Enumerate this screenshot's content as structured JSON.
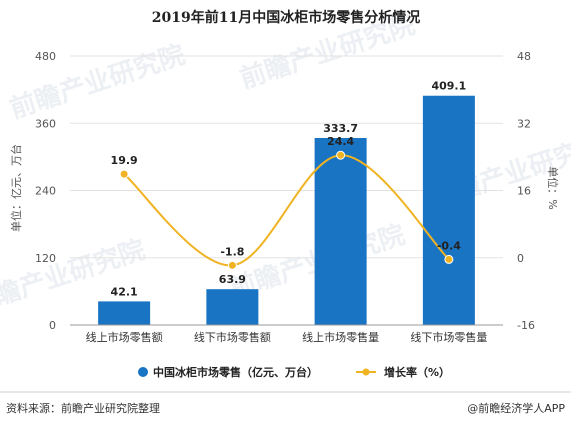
{
  "chart_data": {
    "type": "bar",
    "title": "2019年前11月中国冰柜市场零售分析情况",
    "categories": [
      "线上市场零售额",
      "线下市场零售额",
      "线上市场零售量",
      "线下市场零售量"
    ],
    "series": [
      {
        "name": "中国冰柜市场零售（亿元、万台）",
        "type": "bar",
        "axis": "left",
        "values": [
          42.1,
          63.9,
          333.7,
          409.1
        ],
        "color": "#1a74c4"
      },
      {
        "name": "增长率（%）",
        "type": "line",
        "axis": "right",
        "values": [
          19.9,
          -1.8,
          24.4,
          -0.4
        ],
        "color": "#f0b323"
      }
    ],
    "ylabel": "单位：亿元、万台",
    "y2label": "单位：%",
    "ylim": [
      0,
      480
    ],
    "y2lim": [
      -16,
      48
    ],
    "yticks": [
      "0",
      "120",
      "240",
      "360",
      "480"
    ],
    "y2ticks": [
      "-16",
      "0",
      "16",
      "32",
      "48"
    ],
    "grid": true,
    "legend": "bottom"
  },
  "footer": {
    "source": "资料来源：前瞻产业研究院整理",
    "brand": "@前瞻经济学人APP"
  },
  "watermark": "前瞻产业研究院"
}
